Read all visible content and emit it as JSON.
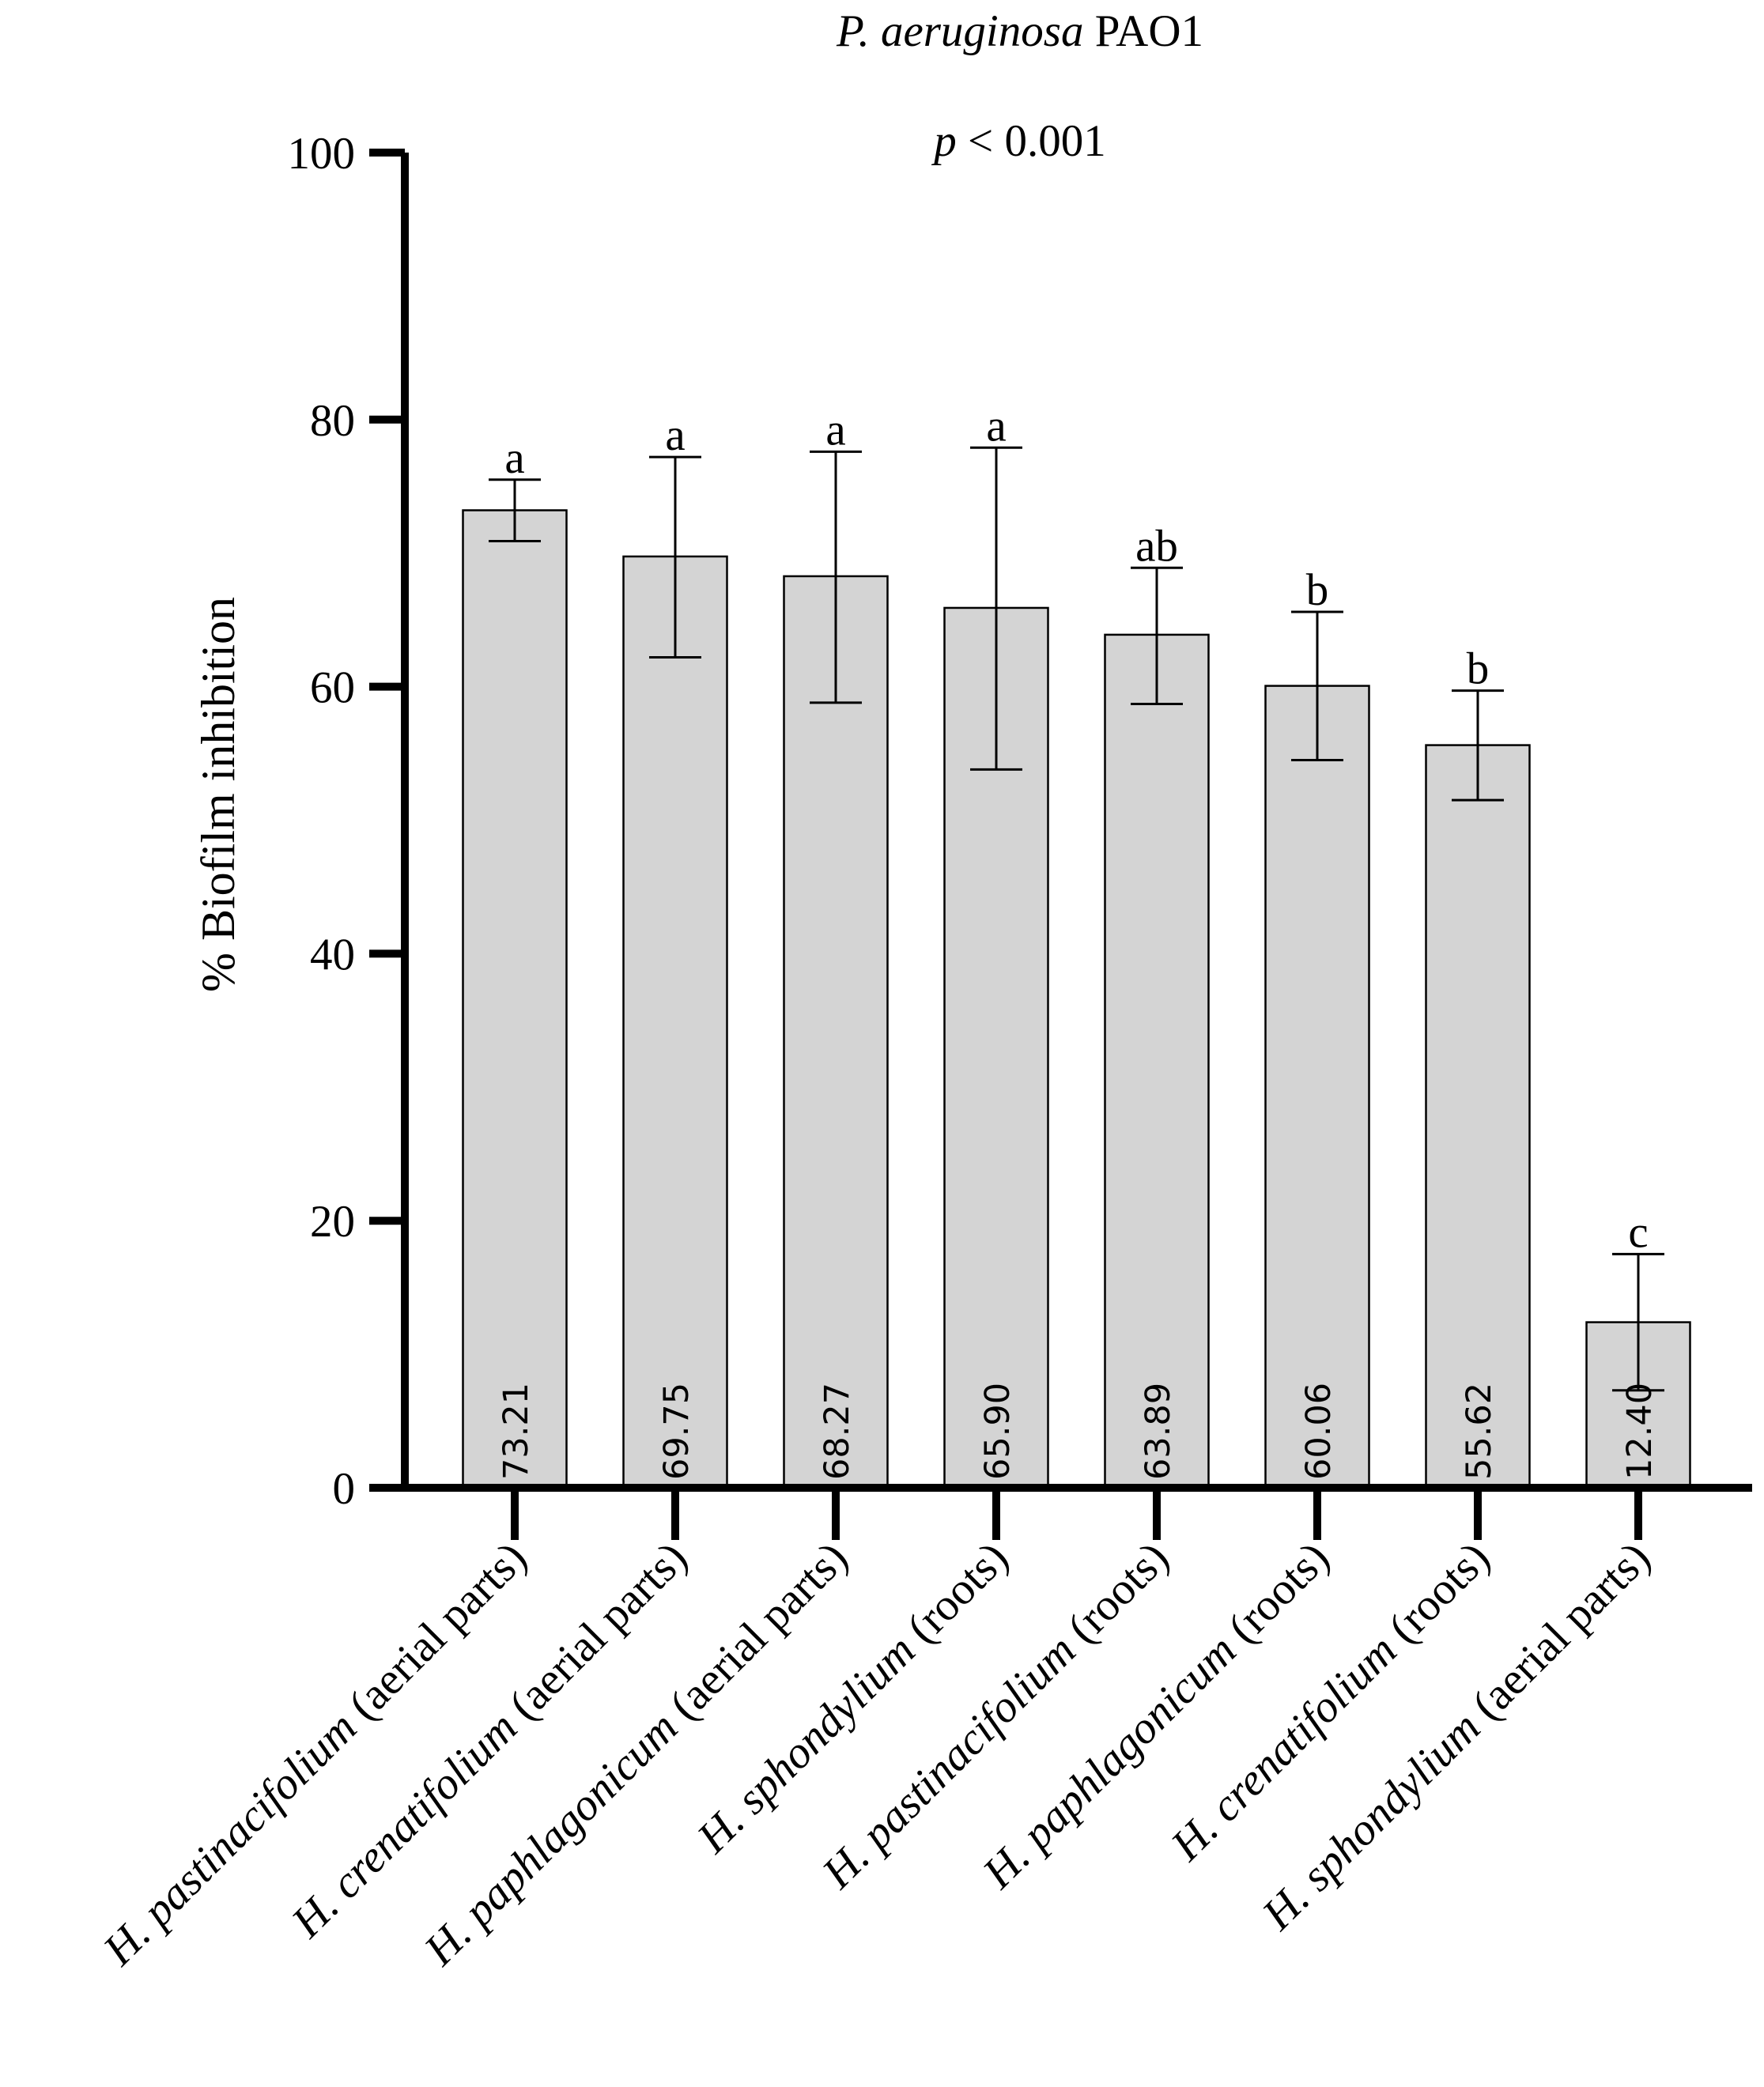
{
  "chart_data": {
    "type": "bar",
    "title": {
      "organism_italic": "P. aeruginosa",
      "organism_rest": "PAO1"
    },
    "subtitle": {
      "p_italic": "p",
      "rest": "< 0.001"
    },
    "xlabel": "",
    "ylabel": "% Biofilm inhibition",
    "ylim": [
      0,
      100
    ],
    "yticks": [
      0,
      20,
      40,
      60,
      80,
      100
    ],
    "categories": [
      {
        "species": "H. pastinacifolium",
        "part": "(aerial parts)"
      },
      {
        "species": "H. crenatifolium",
        "part": "(aerial parts)"
      },
      {
        "species": "H. paphlagonicum",
        "part": "(aerial parts)"
      },
      {
        "species": "H. sphondylium",
        "part": "(roots)"
      },
      {
        "species": "H. pastinacifolium",
        "part": "(roots)"
      },
      {
        "species": "H. paphlagonicum",
        "part": "(roots)"
      },
      {
        "species": "H. crenatifolium",
        "part": "(roots)"
      },
      {
        "species": "H. sphondylium",
        "part": "(aerial parts)"
      }
    ],
    "values": [
      73.21,
      69.75,
      68.27,
      65.9,
      63.89,
      60.06,
      55.62,
      12.4
    ],
    "value_labels": [
      "73.21",
      "69.75",
      "68.27",
      "65.90",
      "63.89",
      "60.06",
      "55.62",
      "12.40"
    ],
    "error_low": [
      70.9,
      62.2,
      58.8,
      53.8,
      58.7,
      54.5,
      51.5,
      7.3
    ],
    "error_high": [
      75.5,
      77.2,
      77.6,
      77.9,
      68.9,
      65.6,
      59.7,
      17.5
    ],
    "significance_letters": [
      "a",
      "a",
      "a",
      "a",
      "ab",
      "b",
      "b",
      "c"
    ],
    "bar_color": "#d4d4d4",
    "grid": false
  }
}
